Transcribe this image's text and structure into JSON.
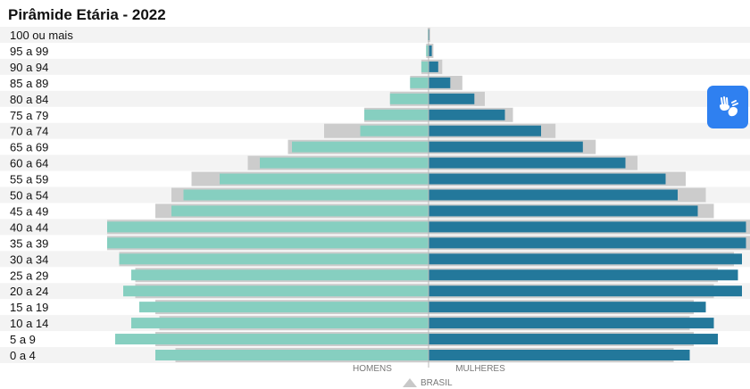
{
  "chart_data": {
    "type": "bar",
    "title": "Pirâmide Etária - 2022",
    "categories": [
      "0 a 4",
      "5 a 9",
      "10 a 14",
      "15 a 19",
      "20 a 24",
      "25 a 29",
      "30 a 34",
      "35 a 39",
      "40 a 44",
      "45 a 49",
      "50 a 54",
      "55 a 59",
      "60 a 64",
      "65 a 69",
      "70 a 74",
      "75 a 79",
      "80 a 84",
      "85 a 89",
      "90 a 94",
      "95 a 99",
      "100 ou mais"
    ],
    "series": [
      {
        "name": "HOMENS",
        "values": [
          3.4,
          3.9,
          3.7,
          3.6,
          3.8,
          3.7,
          3.85,
          4.0,
          4.0,
          3.2,
          3.05,
          2.6,
          2.1,
          1.7,
          0.85,
          0.8,
          0.48,
          0.23,
          0.09,
          0.03,
          0.01
        ]
      },
      {
        "name": "MULHERES",
        "values": [
          3.25,
          3.6,
          3.55,
          3.45,
          3.9,
          3.85,
          3.9,
          3.95,
          3.95,
          3.35,
          3.1,
          2.95,
          2.45,
          1.92,
          1.4,
          0.95,
          0.57,
          0.27,
          0.12,
          0.04,
          0.01
        ]
      },
      {
        "name": "BRASIL",
        "values": [
          3.15,
          3.4,
          3.35,
          3.4,
          3.65,
          3.65,
          3.85,
          4.05,
          4.05,
          3.4,
          3.2,
          2.95,
          2.25,
          1.75,
          1.3,
          0.8,
          0.48,
          0.23,
          0.09,
          0.03,
          0.01
        ]
      },
      {
        "name": "BRASIL",
        "values": [
          3.05,
          3.3,
          3.25,
          3.3,
          3.55,
          3.6,
          3.8,
          4.0,
          4.0,
          3.55,
          3.45,
          3.2,
          2.6,
          2.08,
          1.58,
          1.05,
          0.7,
          0.42,
          0.17,
          0.06,
          0.02
        ]
      }
    ],
    "xlim": [
      0,
      4.1
    ],
    "grid": false,
    "legend": "bottom"
  },
  "colors": {
    "men": "#86cfc0",
    "women": "#23789b",
    "reference": "#cccccc",
    "stripe": "#f3f3f3",
    "accessibility_button": "#2f80f0"
  },
  "accessibility": {
    "icon": "sign-language-hands-icon"
  }
}
